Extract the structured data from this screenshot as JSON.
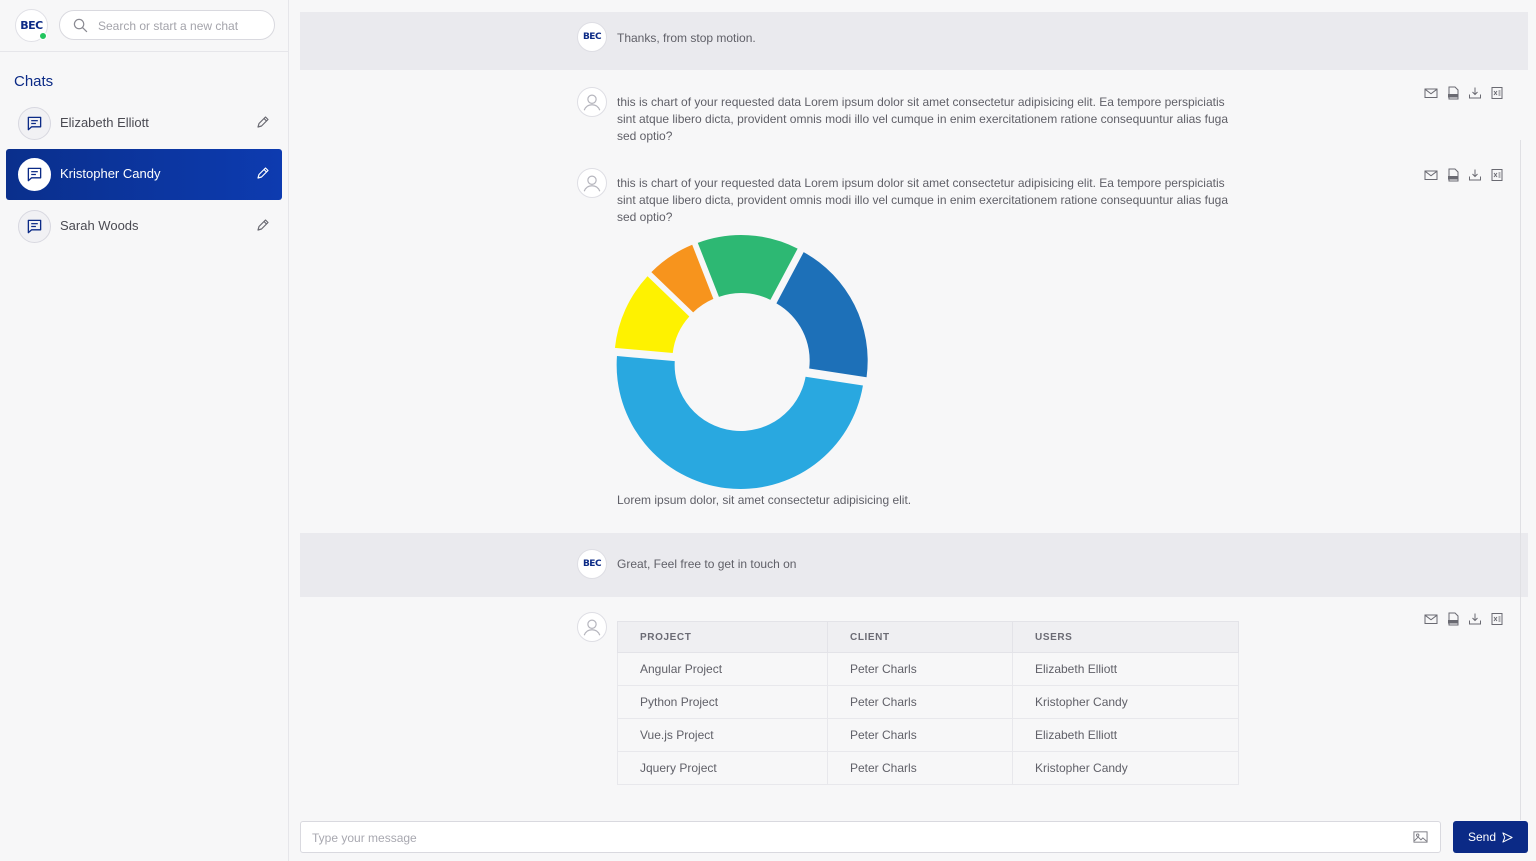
{
  "sidebar": {
    "logo": "BEC",
    "search_placeholder": "Search or start a new chat",
    "chats_title": "Chats",
    "items": [
      {
        "label": "Elizabeth Elliott",
        "active": false
      },
      {
        "label": "Kristopher Candy",
        "active": true
      },
      {
        "label": "Sarah Woods",
        "active": false
      }
    ]
  },
  "messages": {
    "bot_logo": "BEC",
    "m1": "Thanks, from stop motion.",
    "m2": "this is chart of your requested data Lorem ipsum dolor sit amet consectetur adipisicing elit. Ea tempore perspiciatis sint atque libero dicta, provident omnis modi illo vel cumque in enim exercitationem ratione consequuntur alias fuga sed optio?",
    "m3": "this is chart of your requested data Lorem ipsum dolor sit amet consectetur adipisicing elit. Ea tempore perspiciatis sint atque libero dicta, provident omnis modi illo vel cumque in enim exercitationem ratione consequuntur alias fuga sed optio?",
    "m3_caption": "Lorem ipsum dolor, sit amet consectetur adipisicing elit.",
    "m4": "Great, Feel free to get in touch on",
    "action_icons": [
      "mail-icon",
      "pdf-icon",
      "download-icon",
      "excel-icon"
    ]
  },
  "chart_data": {
    "type": "pie",
    "variant": "donut",
    "values": [
      20,
      50,
      11,
      7,
      14
    ],
    "colors": [
      "#1d70b8",
      "#29a8e0",
      "#fef200",
      "#f7941d",
      "#2db873"
    ],
    "legend": "none"
  },
  "table": {
    "headers": [
      "PROJECT",
      "CLIENT",
      "USERS"
    ],
    "rows": [
      [
        "Angular Project",
        "Peter Charls",
        "Elizabeth Elliott"
      ],
      [
        "Python Project",
        "Peter Charls",
        "Kristopher Candy"
      ],
      [
        "Vue.js Project",
        "Peter Charls",
        "Elizabeth Elliott"
      ],
      [
        "Jquery Project",
        "Peter Charls",
        "Kristopher Candy"
      ]
    ]
  },
  "composer": {
    "placeholder": "Type your message",
    "send_label": "Send"
  },
  "colors": {
    "brand": "#0b2a86",
    "online": "#22c55e"
  }
}
